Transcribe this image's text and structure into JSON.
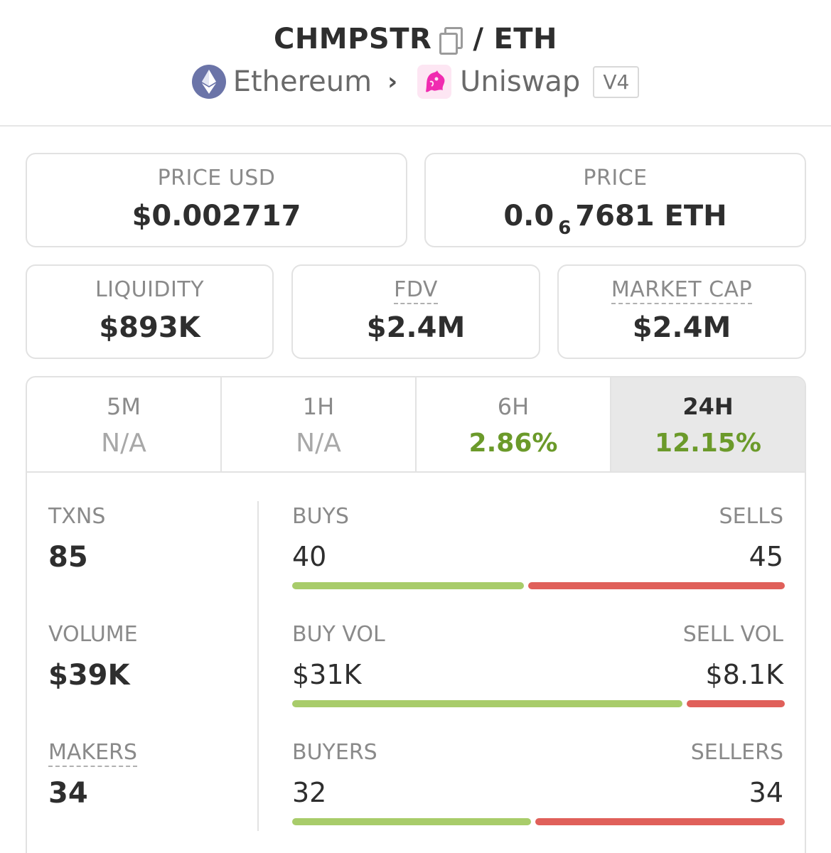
{
  "header": {
    "base_token": "CHMPSTR",
    "separator": "/",
    "quote_token": "ETH",
    "chain": "Ethereum",
    "dex": "Uniswap",
    "version": "V4",
    "icons": {
      "copy": "copy-icon",
      "chain": "ethereum-icon",
      "breadcrumb_separator": "chevron-right-icon",
      "dex": "uniswap-icon"
    }
  },
  "stats": {
    "price_usd": {
      "label": "PRICE USD",
      "value": "$0.002717"
    },
    "price": {
      "label": "PRICE",
      "value_prefix": "0.0",
      "value_subscript": "6",
      "value_suffix": "7681 ETH"
    },
    "liquidity": {
      "label": "LIQUIDITY",
      "value": "$893K"
    },
    "fdv": {
      "label": "FDV",
      "value": "$2.4M"
    },
    "market_cap": {
      "label": "MARKET CAP",
      "value": "$2.4M"
    }
  },
  "tabs": [
    {
      "label": "5M",
      "value": "N/A",
      "active": false
    },
    {
      "label": "1H",
      "value": "N/A",
      "active": false
    },
    {
      "label": "6H",
      "value": "2.86%",
      "active": false
    },
    {
      "label": "24H",
      "value": "12.15%",
      "active": true
    }
  ],
  "metrics": {
    "txns": {
      "label": "TXNS",
      "value": "85"
    },
    "volume": {
      "label": "VOLUME",
      "value": "$39K"
    },
    "makers": {
      "label": "MAKERS",
      "value": "34"
    },
    "buys": {
      "label": "BUYS",
      "value": "40"
    },
    "sells": {
      "label": "SELLS",
      "value": "45"
    },
    "buy_vol": {
      "label": "BUY VOL",
      "value": "$31K"
    },
    "sell_vol": {
      "label": "SELL VOL",
      "value": "$8.1K"
    },
    "buyers": {
      "label": "BUYERS",
      "value": "32"
    },
    "sellers": {
      "label": "SELLERS",
      "value": "34"
    }
  },
  "colors": {
    "positive": "#6b9a2a",
    "buy_bar": "#a8cc6a",
    "sell_bar": "#e0605a",
    "active_tab_bg": "#e8e8e8"
  }
}
